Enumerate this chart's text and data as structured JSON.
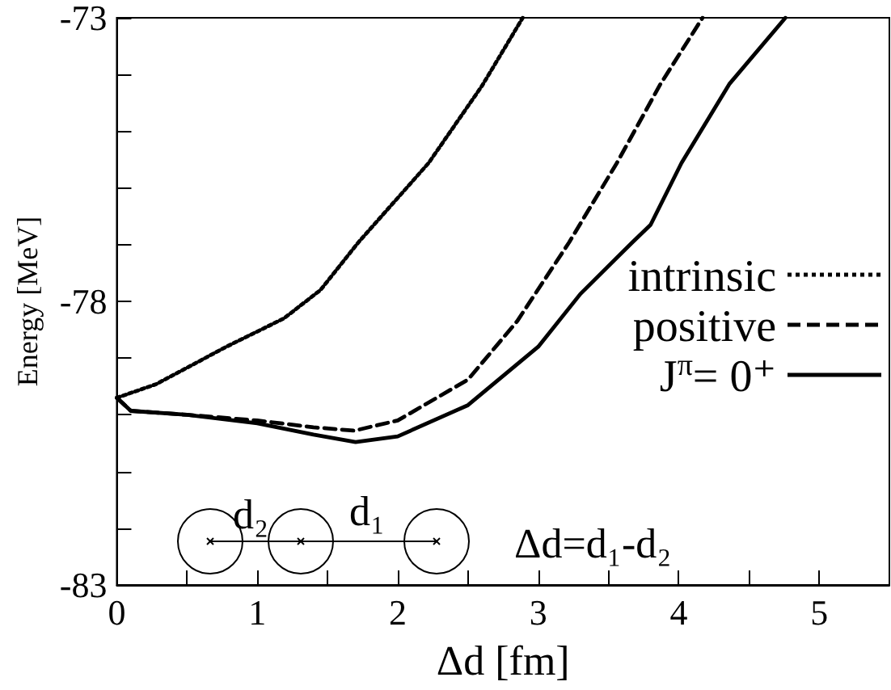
{
  "chart_data": {
    "type": "line",
    "xlabel": "Δd [fm]",
    "ylabel": "Energy [MeV]",
    "xlim": [
      0,
      5.5
    ],
    "xticks": [
      0,
      {
        "value": 0.5,
        "label": null
      },
      1,
      {
        "value": 1.5,
        "label": null
      },
      2,
      {
        "value": 2.5,
        "label": null
      },
      3,
      {
        "value": 3.5,
        "label": null
      },
      4,
      {
        "value": 4.5,
        "label": null
      },
      5
    ],
    "ylim": [
      -83,
      -73
    ],
    "yticks": [
      -83,
      {
        "value": -82,
        "label": null
      },
      {
        "value": -81,
        "label": null
      },
      {
        "value": -80,
        "label": null
      },
      {
        "value": -79,
        "label": null
      },
      -78,
      {
        "value": -77,
        "label": null
      },
      {
        "value": -76,
        "label": null
      },
      {
        "value": -75,
        "label": null
      },
      {
        "value": -74,
        "label": null
      },
      -73
    ],
    "grid": false,
    "legend": "right",
    "marker": "none",
    "series": [
      {
        "name": "intrinsic",
        "color": "#000000",
        "line_style": "dotted",
        "x": [
          0,
          0.28,
          0.78,
          1.19,
          1.45,
          1.72,
          2.22,
          2.6,
          2.89
        ],
        "values": [
          -79.7,
          -79.46,
          -78.8,
          -78.3,
          -77.8,
          -76.96,
          -75.56,
          -74.2,
          -73
        ]
      },
      {
        "name": "positive",
        "color": "#000000",
        "line_style": "dashed",
        "x": [
          0,
          0.1,
          0.5,
          1,
          1.4,
          1.69,
          2,
          2.5,
          2.85,
          3.22,
          3.56,
          3.87,
          4.17
        ],
        "values": [
          -79.7,
          -79.93,
          -80.0,
          -80.1,
          -80.22,
          -80.28,
          -80.1,
          -79.38,
          -78.35,
          -76.96,
          -75.56,
          -74.17,
          -73
        ]
      },
      {
        "name": "J$^{π}$= 0⁺",
        "color": "#000000",
        "line_style": "solid",
        "x": [
          0,
          0.1,
          0.5,
          1,
          1.4,
          1.7,
          2,
          2.5,
          3,
          3.3,
          3.67,
          3.8,
          4.02,
          4.36,
          4.76
        ],
        "values": [
          -79.7,
          -79.93,
          -80.0,
          -80.15,
          -80.35,
          -80.48,
          -80.38,
          -79.83,
          -78.8,
          -77.87,
          -76.96,
          -76.65,
          -75.56,
          -74.17,
          -73
        ]
      }
    ],
    "annotations": [
      "d₂",
      "d₁",
      "Δd=d₁-d₂"
    ]
  }
}
